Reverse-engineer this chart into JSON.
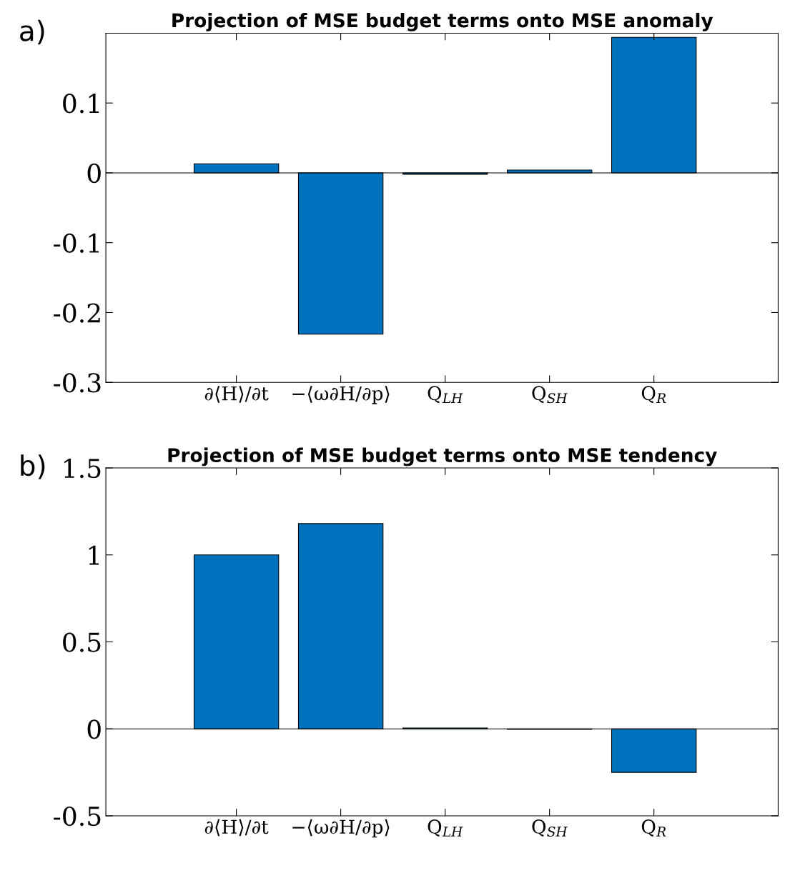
{
  "chart_data": [
    {
      "type": "bar",
      "title": "Projection of MSE budget terms onto MSE anomaly",
      "annotations": [
        "a)"
      ],
      "categories": [
        "∂⟨H⟩/∂t",
        "−⟨ω∂H/∂p⟩",
        "Q$_{LH}$",
        "Q$_{SH}$",
        "Q$_{R}$"
      ],
      "values": [
        0.013,
        -0.231,
        -0.002,
        0.004,
        0.194
      ],
      "color": "#0072bd",
      "ylim": [
        -0.3,
        0.2
      ],
      "yticks": [
        -0.3,
        -0.2,
        -0.1,
        0,
        0.1
      ],
      "ref_lines": [
        {
          "axis": "y",
          "value": 0,
          "color": "#000000"
        }
      ],
      "grid": false,
      "legend": false
    },
    {
      "type": "bar",
      "title": "Projection of MSE budget terms onto MSE tendency",
      "annotations": [
        "b)"
      ],
      "categories": [
        "∂⟨H⟩/∂t",
        "−⟨ω∂H/∂p⟩",
        "Q$_{LH}$",
        "Q$_{SH}$",
        "Q$_{R}$"
      ],
      "values": [
        1.0,
        1.18,
        0.005,
        -0.003,
        -0.25
      ],
      "color": "#0072bd",
      "ylim": [
        -0.5,
        1.5
      ],
      "yticks": [
        -0.5,
        0,
        0.5,
        1,
        1.5
      ],
      "ref_lines": [
        {
          "axis": "y",
          "value": 0,
          "color": "#000000"
        }
      ],
      "grid": false,
      "legend": false
    }
  ]
}
